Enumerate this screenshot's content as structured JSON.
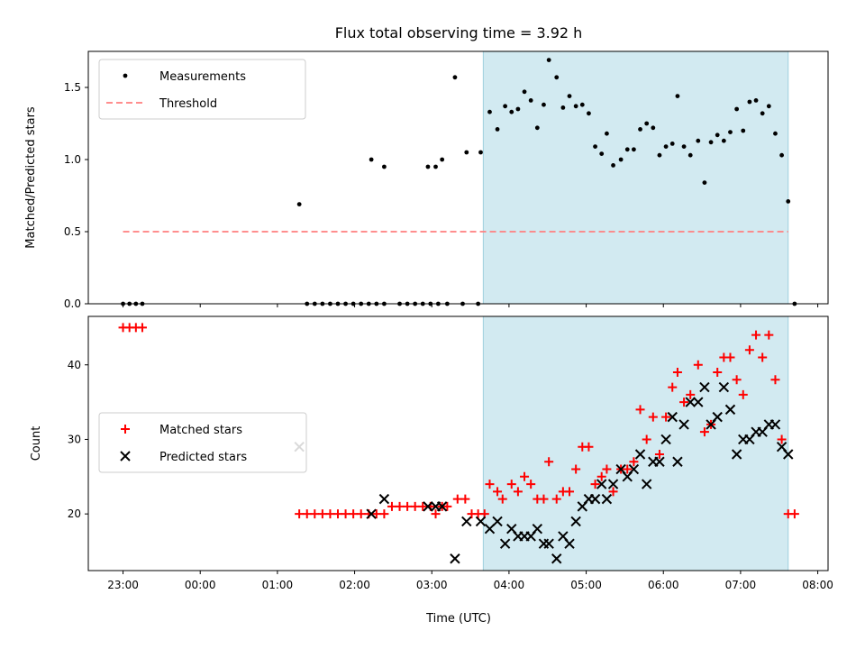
{
  "chart_data": [
    {
      "type": "scatter",
      "title": "Flux total observing time = 3.92 h",
      "xlabel": "",
      "ylabel": "Matched/Predicted stars",
      "xlim": [
        "2023-01-01T22:33",
        "2023-01-02T08:08"
      ],
      "ylim": [
        0,
        1.75
      ],
      "yticks": [
        0.0,
        0.5,
        1.0,
        1.5
      ],
      "yticklabels": [
        "0.0",
        "0.5",
        "1.0",
        "1.5"
      ],
      "legend_position": "upper-left",
      "shaded_span": {
        "start": "2023-01-02T03:40",
        "end": "2023-01-02T07:37",
        "color": "#add8e6"
      },
      "series": [
        {
          "name": "Measurements",
          "marker": "dot",
          "color": "#000000",
          "points": [
            [
              "2023-01-01T23:00",
              0
            ],
            [
              "2023-01-01T23:05",
              0
            ],
            [
              "2023-01-01T23:10",
              0
            ],
            [
              "2023-01-01T23:15",
              0
            ],
            [
              "2023-01-02T01:17",
              0.69
            ],
            [
              "2023-01-02T01:23",
              0
            ],
            [
              "2023-01-02T01:29",
              0
            ],
            [
              "2023-01-02T01:35",
              0
            ],
            [
              "2023-01-02T01:41",
              0
            ],
            [
              "2023-01-02T01:47",
              0
            ],
            [
              "2023-01-02T01:53",
              0
            ],
            [
              "2023-01-02T01:59",
              0
            ],
            [
              "2023-01-02T02:05",
              0
            ],
            [
              "2023-01-02T02:11",
              0
            ],
            [
              "2023-01-02T02:17",
              0
            ],
            [
              "2023-01-02T02:23",
              0
            ],
            [
              "2023-01-02T02:13",
              1.0
            ],
            [
              "2023-01-02T02:23",
              0.95
            ],
            [
              "2023-01-02T02:35",
              0
            ],
            [
              "2023-01-02T02:41",
              0
            ],
            [
              "2023-01-02T02:47",
              0
            ],
            [
              "2023-01-02T02:53",
              0
            ],
            [
              "2023-01-02T02:59",
              0
            ],
            [
              "2023-01-02T03:05",
              0
            ],
            [
              "2023-01-02T02:57",
              0.95
            ],
            [
              "2023-01-02T03:03",
              0.95
            ],
            [
              "2023-01-02T03:08",
              1.0
            ],
            [
              "2023-01-02T03:12",
              0
            ],
            [
              "2023-01-02T03:24",
              0
            ],
            [
              "2023-01-02T03:36",
              0
            ],
            [
              "2023-01-02T03:18",
              1.57
            ],
            [
              "2023-01-02T03:27",
              1.05
            ],
            [
              "2023-01-02T03:38",
              1.05
            ],
            [
              "2023-01-02T03:45",
              1.33
            ],
            [
              "2023-01-02T03:51",
              1.21
            ],
            [
              "2023-01-02T03:57",
              1.37
            ],
            [
              "2023-01-02T04:02",
              1.33
            ],
            [
              "2023-01-02T04:07",
              1.35
            ],
            [
              "2023-01-02T04:12",
              1.47
            ],
            [
              "2023-01-02T04:17",
              1.41
            ],
            [
              "2023-01-02T04:22",
              1.22
            ],
            [
              "2023-01-02T04:27",
              1.38
            ],
            [
              "2023-01-02T04:31",
              1.69
            ],
            [
              "2023-01-02T04:37",
              1.57
            ],
            [
              "2023-01-02T04:42",
              1.36
            ],
            [
              "2023-01-02T04:47",
              1.44
            ],
            [
              "2023-01-02T04:52",
              1.37
            ],
            [
              "2023-01-02T04:57",
              1.38
            ],
            [
              "2023-01-02T05:02",
              1.32
            ],
            [
              "2023-01-02T05:07",
              1.09
            ],
            [
              "2023-01-02T05:12",
              1.04
            ],
            [
              "2023-01-02T05:16",
              1.18
            ],
            [
              "2023-01-02T05:21",
              0.96
            ],
            [
              "2023-01-02T05:27",
              1.0
            ],
            [
              "2023-01-02T05:32",
              1.07
            ],
            [
              "2023-01-02T05:37",
              1.07
            ],
            [
              "2023-01-02T05:42",
              1.21
            ],
            [
              "2023-01-02T05:47",
              1.25
            ],
            [
              "2023-01-02T05:52",
              1.22
            ],
            [
              "2023-01-02T05:57",
              1.03
            ],
            [
              "2023-01-02T06:02",
              1.09
            ],
            [
              "2023-01-02T06:07",
              1.11
            ],
            [
              "2023-01-02T06:11",
              1.44
            ],
            [
              "2023-01-02T06:16",
              1.09
            ],
            [
              "2023-01-02T06:21",
              1.03
            ],
            [
              "2023-01-02T06:27",
              1.13
            ],
            [
              "2023-01-02T06:32",
              0.84
            ],
            [
              "2023-01-02T06:37",
              1.12
            ],
            [
              "2023-01-02T06:42",
              1.17
            ],
            [
              "2023-01-02T06:47",
              1.13
            ],
            [
              "2023-01-02T06:52",
              1.19
            ],
            [
              "2023-01-02T06:57",
              1.35
            ],
            [
              "2023-01-02T07:02",
              1.2
            ],
            [
              "2023-01-02T07:07",
              1.4
            ],
            [
              "2023-01-02T07:12",
              1.41
            ],
            [
              "2023-01-02T07:17",
              1.32
            ],
            [
              "2023-01-02T07:22",
              1.37
            ],
            [
              "2023-01-02T07:27",
              1.18
            ],
            [
              "2023-01-02T07:32",
              1.03
            ],
            [
              "2023-01-02T07:37",
              0.71
            ],
            [
              "2023-01-02T07:42",
              0
            ]
          ]
        },
        {
          "name": "Threshold",
          "marker": "dashed-line",
          "color": "#ff7f7f",
          "points": [
            [
              "2023-01-01T23:00",
              0.5
            ],
            [
              "2023-01-02T07:37",
              0.5
            ]
          ]
        }
      ]
    },
    {
      "type": "scatter",
      "title": "",
      "xlabel": "Time (UTC)",
      "ylabel": "Count",
      "xlim": [
        "2023-01-01T22:33",
        "2023-01-02T08:08"
      ],
      "ylim": [
        12.4,
        46.5
      ],
      "yticks": [
        20,
        30,
        40
      ],
      "yticklabels": [
        "20",
        "30",
        "40"
      ],
      "xticks": [
        "2023-01-01T23:00",
        "2023-01-02T00:00",
        "2023-01-02T01:00",
        "2023-01-02T02:00",
        "2023-01-02T03:00",
        "2023-01-02T04:00",
        "2023-01-02T05:00",
        "2023-01-02T06:00",
        "2023-01-02T07:00",
        "2023-01-02T08:00"
      ],
      "xticklabels": [
        "23:00",
        "00:00",
        "01:00",
        "02:00",
        "03:00",
        "04:00",
        "05:00",
        "06:00",
        "07:00",
        "08:00"
      ],
      "legend_position": "center-left",
      "shaded_span": {
        "start": "2023-01-02T03:40",
        "end": "2023-01-02T07:37",
        "color": "#add8e6"
      },
      "series": [
        {
          "name": "Matched stars",
          "marker": "plus",
          "color": "#ff0000",
          "points": [
            [
              "2023-01-01T23:00",
              45
            ],
            [
              "2023-01-01T23:05",
              45
            ],
            [
              "2023-01-01T23:10",
              45
            ],
            [
              "2023-01-01T23:15",
              45
            ],
            [
              "2023-01-02T01:17",
              20
            ],
            [
              "2023-01-02T01:23",
              20
            ],
            [
              "2023-01-02T01:29",
              20
            ],
            [
              "2023-01-02T01:35",
              20
            ],
            [
              "2023-01-02T01:41",
              20
            ],
            [
              "2023-01-02T01:47",
              20
            ],
            [
              "2023-01-02T01:53",
              20
            ],
            [
              "2023-01-02T01:59",
              20
            ],
            [
              "2023-01-02T02:05",
              20
            ],
            [
              "2023-01-02T02:11",
              20
            ],
            [
              "2023-01-02T02:17",
              20
            ],
            [
              "2023-01-02T02:23",
              20
            ],
            [
              "2023-01-02T02:29",
              21
            ],
            [
              "2023-01-02T02:35",
              21
            ],
            [
              "2023-01-02T02:41",
              21
            ],
            [
              "2023-01-02T02:47",
              21
            ],
            [
              "2023-01-02T02:53",
              21
            ],
            [
              "2023-01-02T02:59",
              21
            ],
            [
              "2023-01-02T03:03",
              20
            ],
            [
              "2023-01-02T03:08",
              21
            ],
            [
              "2023-01-02T03:12",
              21
            ],
            [
              "2023-01-02T03:20",
              22
            ],
            [
              "2023-01-02T03:26",
              22
            ],
            [
              "2023-01-02T03:31",
              20
            ],
            [
              "2023-01-02T03:36",
              20
            ],
            [
              "2023-01-02T03:41",
              20
            ],
            [
              "2023-01-02T03:45",
              24
            ],
            [
              "2023-01-02T03:51",
              23
            ],
            [
              "2023-01-02T03:55",
              22
            ],
            [
              "2023-01-02T04:02",
              24
            ],
            [
              "2023-01-02T04:07",
              23
            ],
            [
              "2023-01-02T04:12",
              25
            ],
            [
              "2023-01-02T04:17",
              24
            ],
            [
              "2023-01-02T04:22",
              22
            ],
            [
              "2023-01-02T04:27",
              22
            ],
            [
              "2023-01-02T04:31",
              27
            ],
            [
              "2023-01-02T04:37",
              22
            ],
            [
              "2023-01-02T04:42",
              23
            ],
            [
              "2023-01-02T04:47",
              23
            ],
            [
              "2023-01-02T04:52",
              26
            ],
            [
              "2023-01-02T04:57",
              29
            ],
            [
              "2023-01-02T05:02",
              29
            ],
            [
              "2023-01-02T05:07",
              24
            ],
            [
              "2023-01-02T05:12",
              25
            ],
            [
              "2023-01-02T05:16",
              26
            ],
            [
              "2023-01-02T05:21",
              23
            ],
            [
              "2023-01-02T05:27",
              26
            ],
            [
              "2023-01-02T05:32",
              26
            ],
            [
              "2023-01-02T05:37",
              27
            ],
            [
              "2023-01-02T05:42",
              34
            ],
            [
              "2023-01-02T05:47",
              30
            ],
            [
              "2023-01-02T05:52",
              33
            ],
            [
              "2023-01-02T05:57",
              28
            ],
            [
              "2023-01-02T06:02",
              33
            ],
            [
              "2023-01-02T06:07",
              37
            ],
            [
              "2023-01-02T06:11",
              39
            ],
            [
              "2023-01-02T06:16",
              35
            ],
            [
              "2023-01-02T06:21",
              36
            ],
            [
              "2023-01-02T06:27",
              40
            ],
            [
              "2023-01-02T06:32",
              31
            ],
            [
              "2023-01-02T06:37",
              32
            ],
            [
              "2023-01-02T06:42",
              39
            ],
            [
              "2023-01-02T06:47",
              41
            ],
            [
              "2023-01-02T06:52",
              41
            ],
            [
              "2023-01-02T06:57",
              38
            ],
            [
              "2023-01-02T07:02",
              36
            ],
            [
              "2023-01-02T07:07",
              42
            ],
            [
              "2023-01-02T07:12",
              44
            ],
            [
              "2023-01-02T07:17",
              41
            ],
            [
              "2023-01-02T07:22",
              44
            ],
            [
              "2023-01-02T07:27",
              38
            ],
            [
              "2023-01-02T07:32",
              30
            ],
            [
              "2023-01-02T07:37",
              20
            ],
            [
              "2023-01-02T07:42",
              20
            ]
          ]
        },
        {
          "name": "Predicted stars",
          "marker": "x",
          "color": "#000000",
          "points": [
            [
              "2023-01-02T01:17",
              29
            ],
            [
              "2023-01-02T02:13",
              20
            ],
            [
              "2023-01-02T02:23",
              22
            ],
            [
              "2023-01-02T02:57",
              21
            ],
            [
              "2023-01-02T03:03",
              21
            ],
            [
              "2023-01-02T03:08",
              21
            ],
            [
              "2023-01-02T03:18",
              14
            ],
            [
              "2023-01-02T03:27",
              19
            ],
            [
              "2023-01-02T03:38",
              19
            ],
            [
              "2023-01-02T03:45",
              18
            ],
            [
              "2023-01-02T03:51",
              19
            ],
            [
              "2023-01-02T03:57",
              16
            ],
            [
              "2023-01-02T04:02",
              18
            ],
            [
              "2023-01-02T04:07",
              17
            ],
            [
              "2023-01-02T04:12",
              17
            ],
            [
              "2023-01-02T04:17",
              17
            ],
            [
              "2023-01-02T04:22",
              18
            ],
            [
              "2023-01-02T04:27",
              16
            ],
            [
              "2023-01-02T04:31",
              16
            ],
            [
              "2023-01-02T04:37",
              14
            ],
            [
              "2023-01-02T04:42",
              17
            ],
            [
              "2023-01-02T04:47",
              16
            ],
            [
              "2023-01-02T04:52",
              19
            ],
            [
              "2023-01-02T04:57",
              21
            ],
            [
              "2023-01-02T05:02",
              22
            ],
            [
              "2023-01-02T05:07",
              22
            ],
            [
              "2023-01-02T05:12",
              24
            ],
            [
              "2023-01-02T05:16",
              22
            ],
            [
              "2023-01-02T05:21",
              24
            ],
            [
              "2023-01-02T05:27",
              26
            ],
            [
              "2023-01-02T05:32",
              25
            ],
            [
              "2023-01-02T05:37",
              26
            ],
            [
              "2023-01-02T05:42",
              28
            ],
            [
              "2023-01-02T05:47",
              24
            ],
            [
              "2023-01-02T05:52",
              27
            ],
            [
              "2023-01-02T05:57",
              27
            ],
            [
              "2023-01-02T06:02",
              30
            ],
            [
              "2023-01-02T06:07",
              33
            ],
            [
              "2023-01-02T06:11",
              27
            ],
            [
              "2023-01-02T06:16",
              32
            ],
            [
              "2023-01-02T06:21",
              35
            ],
            [
              "2023-01-02T06:27",
              35
            ],
            [
              "2023-01-02T06:32",
              37
            ],
            [
              "2023-01-02T06:37",
              32
            ],
            [
              "2023-01-02T06:42",
              33
            ],
            [
              "2023-01-02T06:47",
              37
            ],
            [
              "2023-01-02T06:52",
              34
            ],
            [
              "2023-01-02T06:57",
              28
            ],
            [
              "2023-01-02T07:02",
              30
            ],
            [
              "2023-01-02T07:07",
              30
            ],
            [
              "2023-01-02T07:12",
              31
            ],
            [
              "2023-01-02T07:17",
              31
            ],
            [
              "2023-01-02T07:22",
              32
            ],
            [
              "2023-01-02T07:27",
              32
            ],
            [
              "2023-01-02T07:32",
              29
            ],
            [
              "2023-01-02T07:37",
              28
            ]
          ]
        }
      ]
    }
  ]
}
